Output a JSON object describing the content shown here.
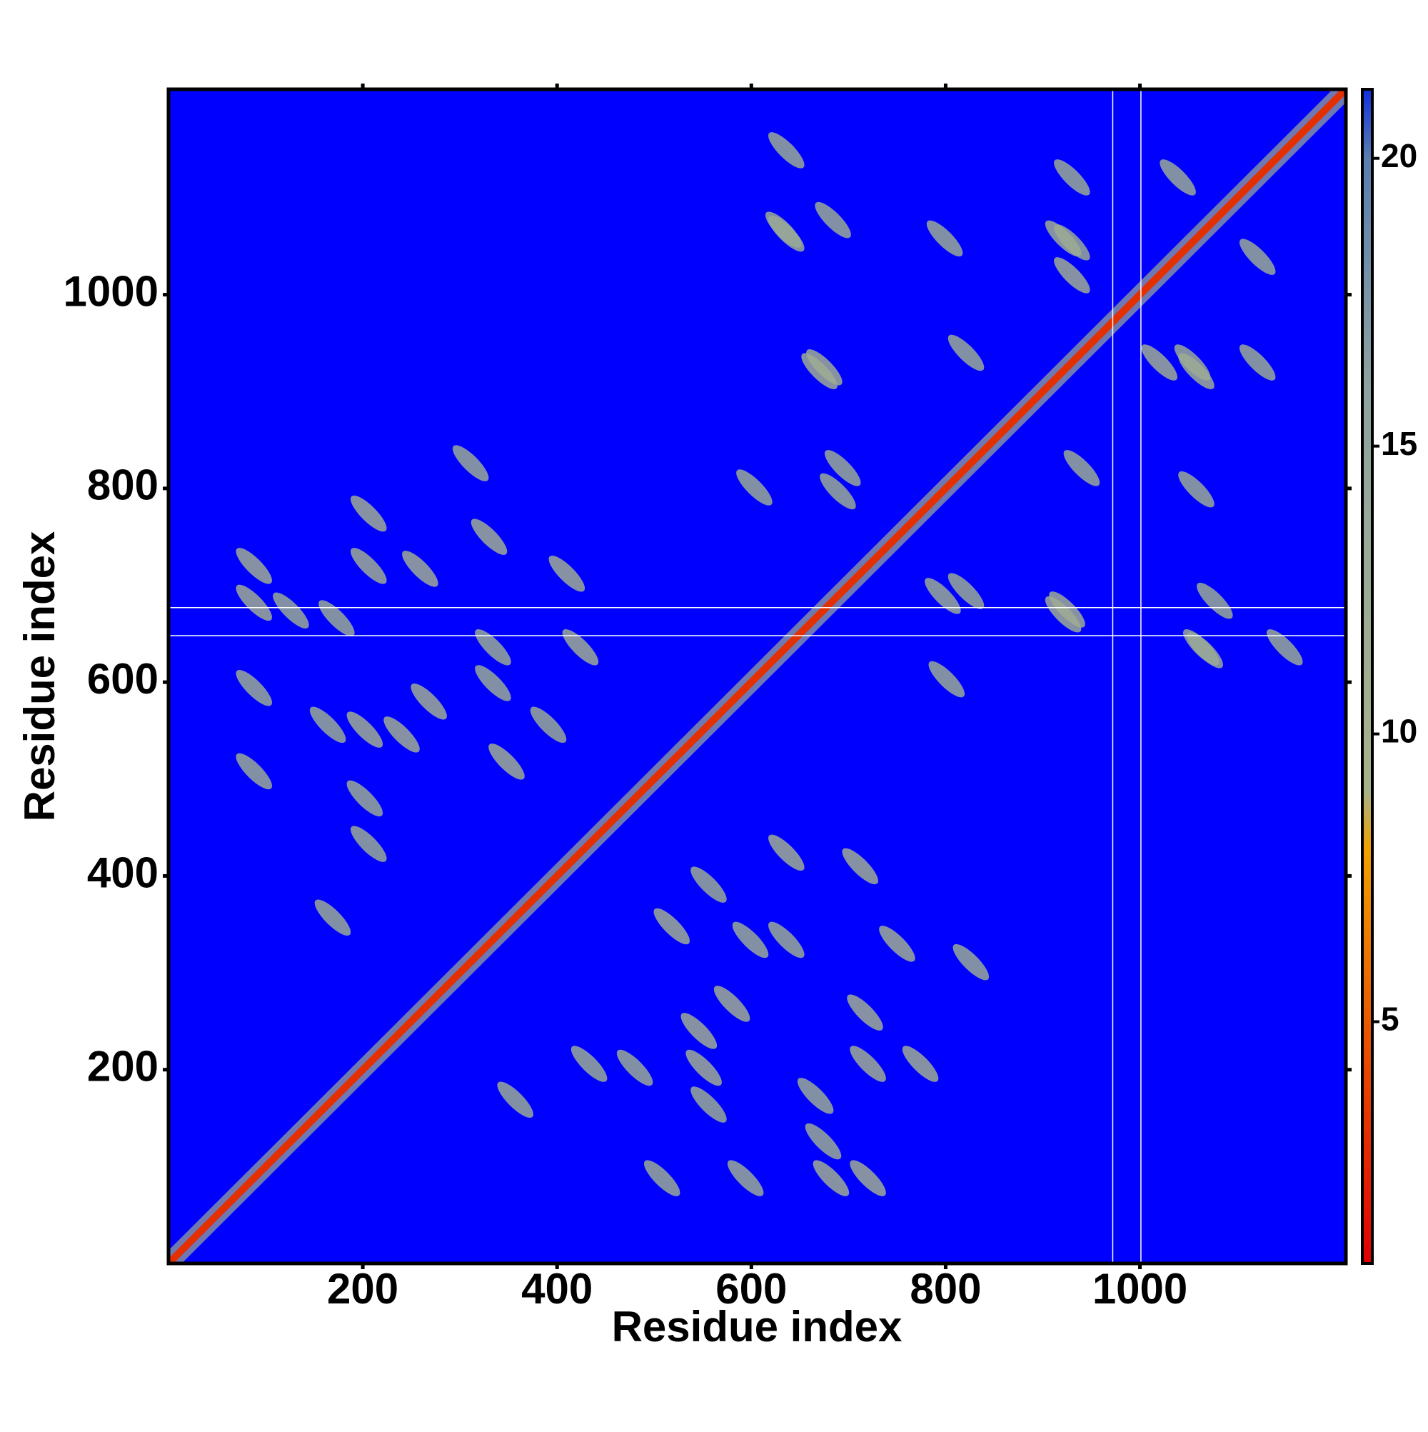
{
  "chart_data": {
    "type": "contact_map",
    "x_label": "Residue index",
    "y_label": "Residue index",
    "xlim": [
      0,
      1212
    ],
    "ylim": [
      0,
      1212
    ],
    "xticks": [
      200,
      400,
      600,
      800,
      1000
    ],
    "yticks": [
      200,
      400,
      600,
      800,
      1000
    ],
    "background_color": "#0000ff",
    "colorbar": {
      "lim": [
        0.8,
        21.2
      ],
      "ticks": [
        5,
        10,
        15,
        20
      ],
      "stops": [
        {
          "value": 0.8,
          "color": "#e00000"
        },
        {
          "value": 5,
          "color": "#e85a00"
        },
        {
          "value": 8,
          "color": "#f0a000"
        },
        {
          "value": 9,
          "color": "#a8b28a"
        },
        {
          "value": 16,
          "color": "#8ea3a0"
        },
        {
          "value": 20,
          "color": "#5a7fb0"
        },
        {
          "value": 21.2,
          "color": "#1030e0"
        }
      ]
    },
    "diagonal_value": 3,
    "contacts": {
      "x": [
        546,
        580,
        551,
        556,
        717,
        720,
        774,
        666,
        720,
        682,
        594,
        508,
        480,
        433,
        518,
        556,
        636,
        712,
        750,
        826,
        599,
        636,
        357,
        674,
        930,
        930,
        1039,
        1058,
        1020,
        670,
        636,
        684,
        636,
        925,
        821,
        1058,
        689,
        603,
        821,
        1067
      ],
      "y": [
        240,
        268,
        202,
        164,
        259,
        206,
        206,
        173,
        88,
        88,
        88,
        88,
        202,
        206,
        348,
        391,
        424,
        410,
        330,
        311,
        334,
        334,
        169,
        126,
        1054,
        1121,
        1121,
        921,
        930,
        921,
        1063,
        1077,
        1149,
        675,
        694,
        799,
        797,
        801,
        940,
        633
      ],
      "values": [
        12,
        12,
        12,
        13,
        12,
        12,
        12,
        13,
        12,
        12,
        13,
        13,
        13,
        13,
        12,
        13,
        12,
        12,
        12,
        13,
        13,
        13,
        13,
        13,
        13,
        13,
        13,
        12,
        12,
        12,
        13,
        13,
        13,
        12,
        13,
        13,
        13,
        13,
        13,
        13
      ]
    },
    "x_gaps": [
      972,
      1001
    ],
    "y_gaps": [
      648,
      677
    ]
  }
}
